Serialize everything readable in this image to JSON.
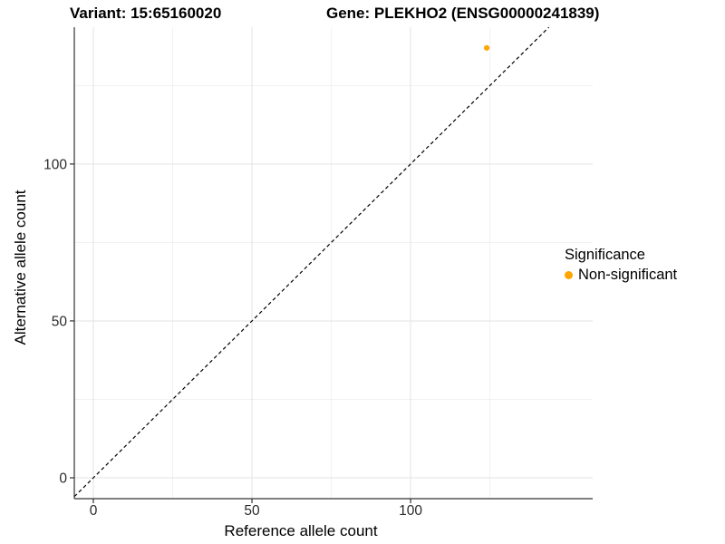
{
  "titles": {
    "variant": "Variant: 15:65160020",
    "gene": "Gene: PLEKHO2 (ENSG00000241839)"
  },
  "legend": {
    "title": "Significance",
    "items": [
      {
        "label": "Non-significant",
        "color": "#FFA500"
      }
    ]
  },
  "chart_data": {
    "type": "scatter",
    "title": "Variant: 15:65160020 | Gene: PLEKHO2 (ENSG00000241839)",
    "xlabel": "Reference allele count",
    "ylabel": "Alternative allele count",
    "xlim": [
      -6.0,
      157.4
    ],
    "ylim": [
      -6.65,
      143.6
    ],
    "x_major_ticks": [
      0,
      50,
      100
    ],
    "x_minor_ticks": [
      25,
      75,
      125
    ],
    "y_major_ticks": [
      0,
      50,
      100
    ],
    "y_minor_ticks": [
      25,
      75,
      125
    ],
    "grid": "major_and_minor",
    "legend_position": "right",
    "identity_line": {
      "equation": "y = x",
      "style": "dashed",
      "color": "#000000"
    },
    "series": [
      {
        "name": "Non-significant",
        "color": "#FFA500",
        "points": [
          {
            "x": 124,
            "y": 137
          }
        ]
      }
    ]
  },
  "colors": {
    "background": "#ffffff",
    "grid_major": "#e3e3e3",
    "grid_minor": "#f1f1f1",
    "axis_line": "#333333",
    "tick_text": "#2b2b2b",
    "point": "#FFA500"
  }
}
